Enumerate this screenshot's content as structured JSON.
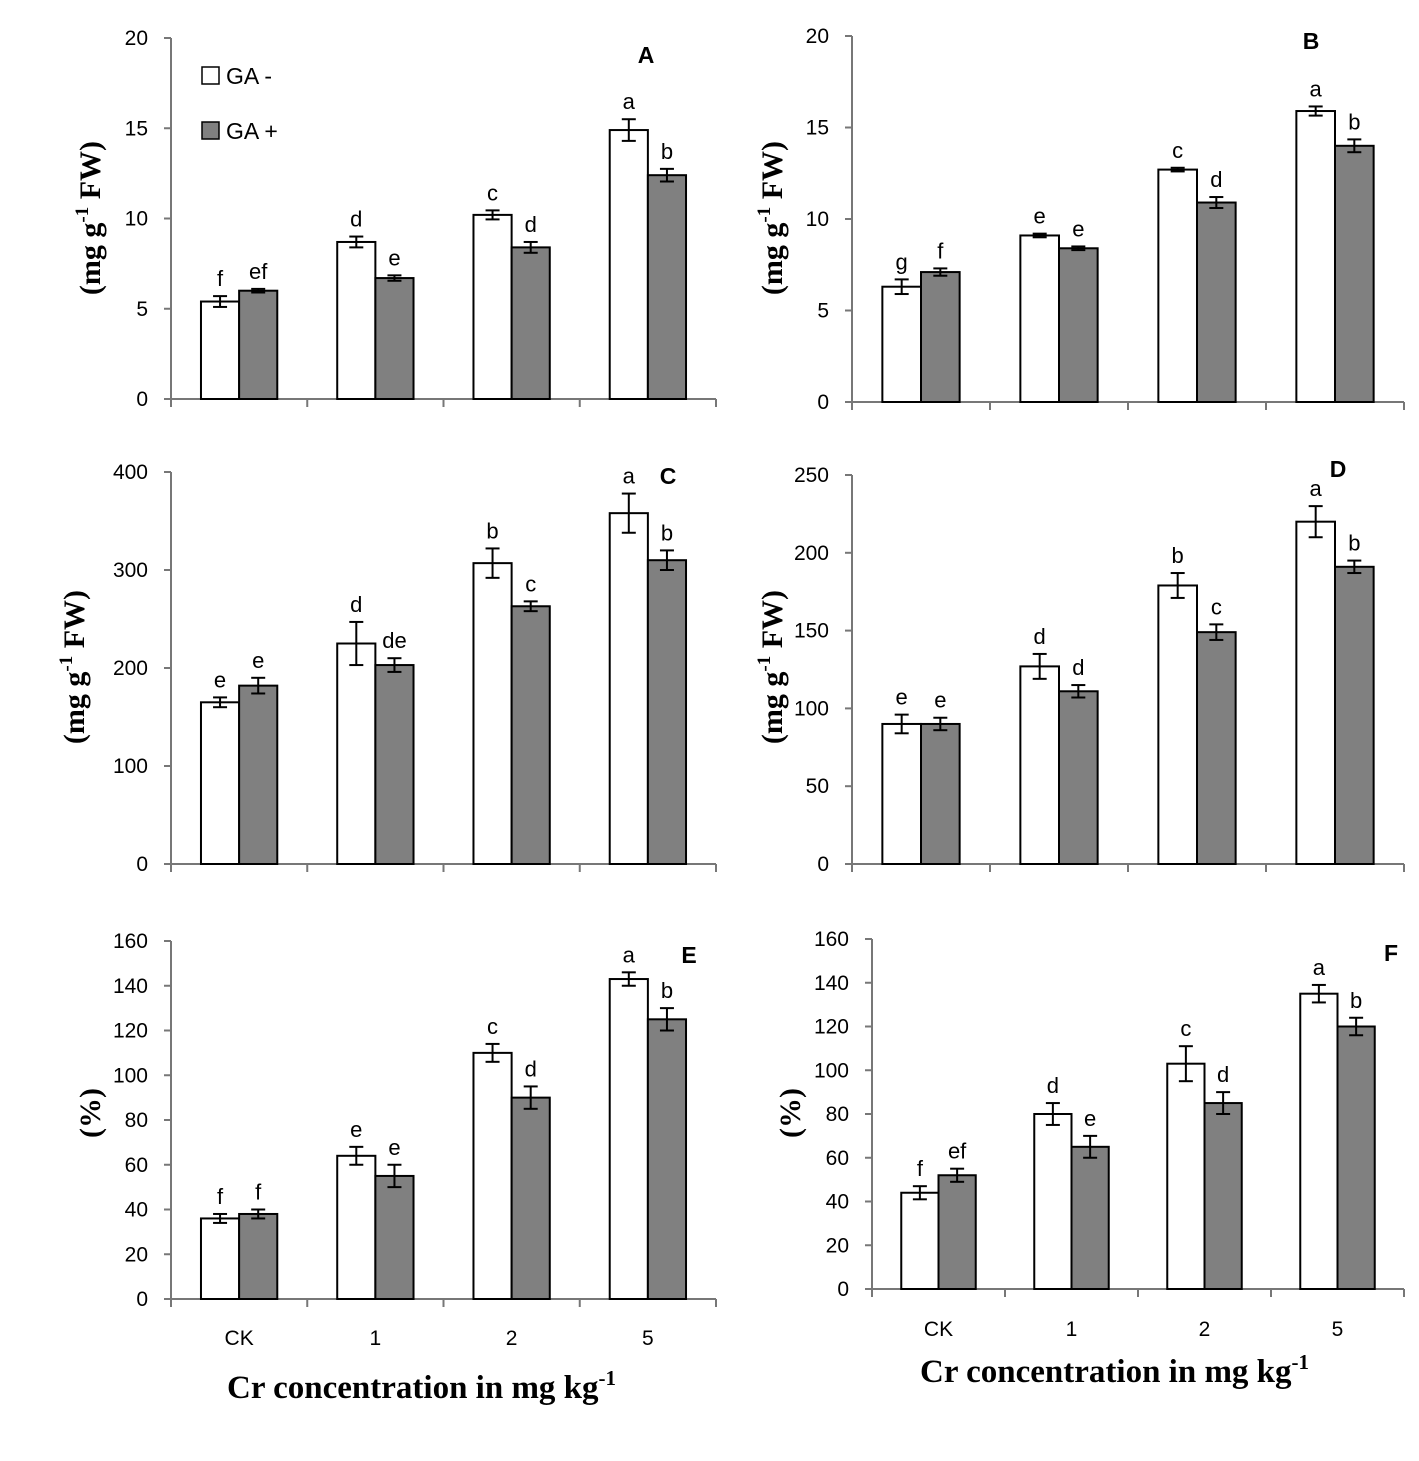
{
  "legend": {
    "entries": [
      {
        "label": "GA -",
        "color": "#ffffff"
      },
      {
        "label": "GA +",
        "color": "#808080"
      }
    ]
  },
  "x_title": {
    "main": "Cr concentration in mg kg",
    "sup": "-1"
  },
  "chart_data": [
    {
      "type": "bar",
      "panel": "A",
      "categories": [
        "CK",
        "1",
        "2",
        "5"
      ],
      "ylim": [
        0,
        20
      ],
      "yticks": [
        0,
        5,
        10,
        15,
        20
      ],
      "ylabel": {
        "main": "(mg g",
        "sup": "-1",
        "tail": " FW)"
      },
      "series": [
        {
          "name": "GA -",
          "color": "#ffffff",
          "values": [
            5.4,
            8.7,
            10.2,
            14.9
          ],
          "errors": [
            0.3,
            0.3,
            0.25,
            0.6
          ],
          "labels": [
            "f",
            "d",
            "c",
            "a"
          ]
        },
        {
          "name": "GA +",
          "color": "#808080",
          "values": [
            6.0,
            6.7,
            8.4,
            12.4
          ],
          "errors": [
            0.1,
            0.15,
            0.3,
            0.35
          ],
          "labels": [
            "ef",
            "e",
            "d",
            "b"
          ]
        }
      ]
    },
    {
      "type": "bar",
      "panel": "B",
      "categories": [
        "CK",
        "1",
        "2",
        "5"
      ],
      "ylim": [
        0,
        20
      ],
      "yticks": [
        0,
        5,
        10,
        15,
        20
      ],
      "ylabel": {
        "main": "(mg g",
        "sup": "-1",
        "tail": " FW)"
      },
      "series": [
        {
          "name": "GA -",
          "color": "#ffffff",
          "values": [
            6.3,
            9.1,
            12.7,
            15.9
          ],
          "errors": [
            0.4,
            0.1,
            0.1,
            0.25
          ],
          "labels": [
            "g",
            "e",
            "c",
            "a"
          ]
        },
        {
          "name": "GA +",
          "color": "#808080",
          "values": [
            7.1,
            8.4,
            10.9,
            14.0
          ],
          "errors": [
            0.2,
            0.1,
            0.3,
            0.35
          ],
          "labels": [
            "f",
            "e",
            "d",
            "b"
          ]
        }
      ]
    },
    {
      "type": "bar",
      "panel": "C",
      "categories": [
        "CK",
        "1",
        "2",
        "5"
      ],
      "ylim": [
        0,
        400
      ],
      "yticks": [
        0,
        100,
        200,
        300,
        400
      ],
      "ylabel": {
        "main": "(mg g",
        "sup": "-1",
        "tail": " FW)"
      },
      "series": [
        {
          "name": "GA -",
          "color": "#ffffff",
          "values": [
            165,
            225,
            307,
            358
          ],
          "errors": [
            5,
            22,
            15,
            20
          ],
          "labels": [
            "e",
            "d",
            "b",
            "a"
          ]
        },
        {
          "name": "GA +",
          "color": "#808080",
          "values": [
            182,
            203,
            263,
            310
          ],
          "errors": [
            8,
            7,
            5,
            10
          ],
          "labels": [
            "e",
            "de",
            "c",
            "b"
          ]
        }
      ]
    },
    {
      "type": "bar",
      "panel": "D",
      "categories": [
        "CK",
        "1",
        "2",
        "5"
      ],
      "ylim": [
        0,
        250
      ],
      "yticks": [
        0,
        50,
        100,
        150,
        200,
        250
      ],
      "ylabel": {
        "main": "(mg g",
        "sup": "-1",
        "tail": " FW)"
      },
      "series": [
        {
          "name": "GA -",
          "color": "#ffffff",
          "values": [
            90,
            127,
            179,
            220
          ],
          "errors": [
            6,
            8,
            8,
            10
          ],
          "labels": [
            "e",
            "d",
            "b",
            "a"
          ]
        },
        {
          "name": "GA +",
          "color": "#808080",
          "values": [
            90,
            111,
            149,
            191
          ],
          "errors": [
            4,
            4,
            5,
            4
          ],
          "labels": [
            "e",
            "d",
            "c",
            "b"
          ]
        }
      ]
    },
    {
      "type": "bar",
      "panel": "E",
      "categories": [
        "CK",
        "1",
        "2",
        "5"
      ],
      "ylim": [
        0,
        160
      ],
      "yticks": [
        0,
        20,
        40,
        60,
        80,
        100,
        120,
        140,
        160
      ],
      "ylabel": {
        "main": "(%)",
        "sup": "",
        "tail": ""
      },
      "series": [
        {
          "name": "GA -",
          "color": "#ffffff",
          "values": [
            36,
            64,
            110,
            143
          ],
          "errors": [
            2,
            4,
            4,
            3
          ],
          "labels": [
            "f",
            "e",
            "c",
            "a"
          ]
        },
        {
          "name": "GA +",
          "color": "#808080",
          "values": [
            38,
            55,
            90,
            125
          ],
          "errors": [
            2,
            5,
            5,
            5
          ],
          "labels": [
            "f",
            "e",
            "d",
            "b"
          ]
        }
      ]
    },
    {
      "type": "bar",
      "panel": "F",
      "categories": [
        "CK",
        "1",
        "2",
        "5"
      ],
      "ylim": [
        0,
        160
      ],
      "yticks": [
        0,
        20,
        40,
        60,
        80,
        100,
        120,
        140,
        160
      ],
      "ylabel": {
        "main": "(%)",
        "sup": "",
        "tail": ""
      },
      "series": [
        {
          "name": "GA -",
          "color": "#ffffff",
          "values": [
            44,
            80,
            103,
            135
          ],
          "errors": [
            3,
            5,
            8,
            4
          ],
          "labels": [
            "f",
            "d",
            "c",
            "a"
          ]
        },
        {
          "name": "GA +",
          "color": "#808080",
          "values": [
            52,
            65,
            85,
            120
          ],
          "errors": [
            3,
            5,
            5,
            4
          ],
          "labels": [
            "ef",
            "e",
            "d",
            "b"
          ]
        }
      ]
    }
  ]
}
